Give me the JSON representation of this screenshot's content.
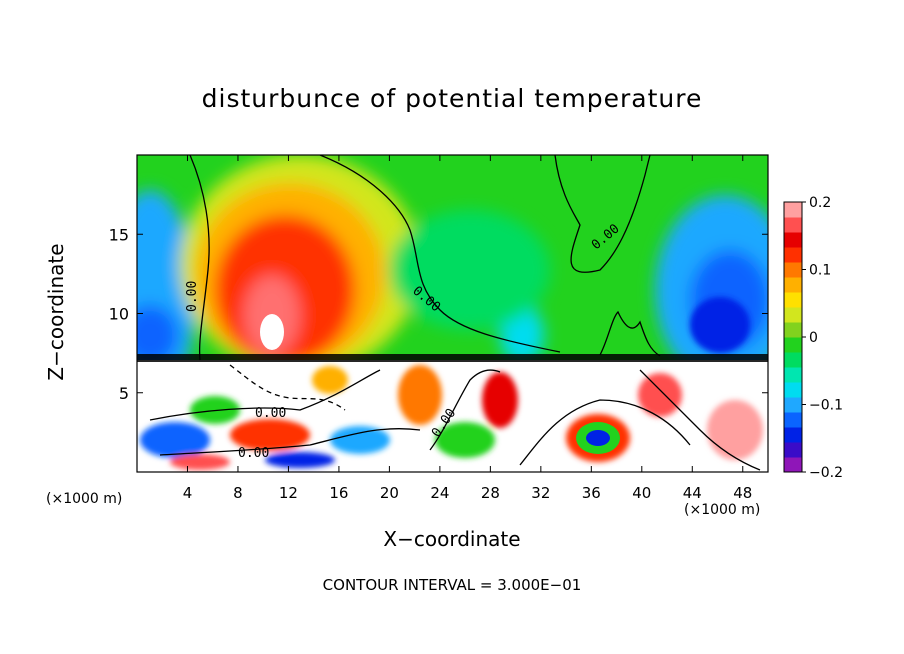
{
  "chart_data": {
    "type": "heatmap",
    "title": "disturbunce of potential temperature",
    "xlabel": "X−coordinate",
    "ylabel": "Z−coordinate",
    "x_units": "(×1000 m)",
    "xlim": [
      0,
      50
    ],
    "ylim": [
      0,
      20
    ],
    "x_ticks": [
      4,
      8,
      12,
      16,
      20,
      24,
      28,
      32,
      36,
      40,
      44,
      48
    ],
    "y_ticks": [
      5,
      10,
      15
    ],
    "colorbar": {
      "range": [
        -0.2,
        0.2
      ],
      "tick_values": [
        0.2,
        0.1,
        0,
        -0.1,
        -0.2
      ],
      "tick_labels": [
        "0.2",
        "0.1",
        "0",
        "−0.1",
        "−0.2"
      ],
      "colors": [
        "#8f16b8",
        "#3a0cc8",
        "#0022e6",
        "#0a64ff",
        "#1fa8ff",
        "#00dcf0",
        "#00e6b0",
        "#00dc60",
        "#22d21e",
        "#82d21e",
        "#d2e61e",
        "#ffe000",
        "#ffb000",
        "#ff7800",
        "#ff3000",
        "#e60000",
        "#ff5050",
        "#ffa0a0"
      ]
    },
    "contour_labels": [
      "0.00",
      "0.00",
      "0.00",
      "0.00",
      "0.00",
      "0.00"
    ],
    "contour_interval_text": "CONTOUR INTERVAL = 3.000E−01",
    "colors": {
      "background": "#ffffff",
      "frame": "#000000"
    }
  }
}
